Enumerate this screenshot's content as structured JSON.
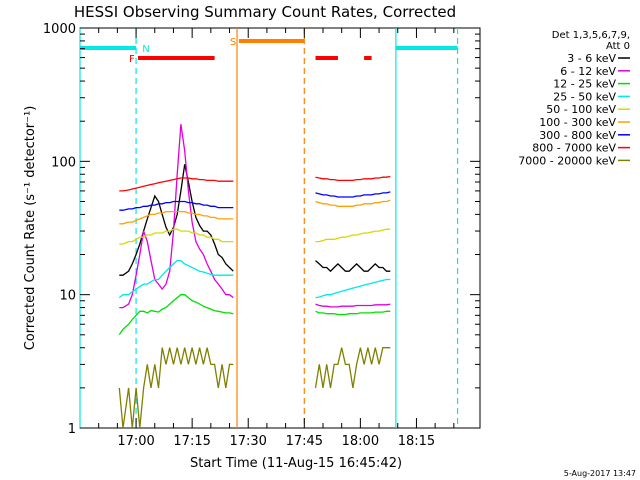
{
  "chart_data": {
    "type": "line",
    "title": "HESSI Observing Summary Count Rates, Corrected",
    "xlabel": "Start Time (11-Aug-15 16:45:42)",
    "ylabel": "Corrected Count Rate (s⁻¹ detector⁻¹)",
    "yscale": "log",
    "ylim": [
      1,
      1000
    ],
    "xlim_minutes_after_1645": [
      0,
      107
    ],
    "x_tick_labels": [
      "17:00",
      "17:15",
      "17:30",
      "17:45",
      "18:00",
      "18:15"
    ],
    "x_tick_minutes": [
      15,
      30,
      45,
      60,
      75,
      90
    ],
    "y_tick_labels": [
      "1",
      "10",
      "100",
      "1000"
    ],
    "legend": {
      "header": [
        "Det 1,3,5,6,7,9,",
        "Att 0"
      ],
      "position": "right"
    },
    "series": [
      {
        "name": "3 - 6 keV",
        "color": "#000000",
        "seg1": {
          "x": [
            10.5,
            11.5,
            13,
            14,
            15,
            16,
            17,
            18,
            19,
            20,
            21,
            22,
            23,
            24,
            25,
            26,
            27,
            28,
            29,
            30,
            31,
            32,
            33,
            34,
            35,
            36,
            37,
            38,
            39,
            40,
            41
          ],
          "y": [
            14,
            14,
            15,
            17,
            20,
            24,
            30,
            37,
            45,
            55,
            50,
            40,
            32,
            28,
            32,
            40,
            60,
            95,
            70,
            50,
            38,
            33,
            30,
            30,
            28,
            24,
            20,
            19,
            17,
            16,
            15
          ]
        },
        "seg2": {
          "x": [
            63,
            64,
            65,
            66,
            67,
            68,
            69,
            70,
            71,
            72,
            73,
            74,
            75,
            76,
            77,
            78,
            79,
            80,
            81,
            82,
            83
          ],
          "y": [
            18,
            17,
            16,
            16,
            15,
            16,
            17,
            16,
            15,
            15,
            16,
            17,
            16,
            15,
            15,
            16,
            17,
            16,
            16,
            15,
            15
          ]
        }
      },
      {
        "name": "6 - 12 keV",
        "color": "#e000e0",
        "seg1": {
          "x": [
            10.5,
            11.5,
            13,
            14,
            15,
            16,
            17,
            18,
            19,
            20,
            21,
            22,
            23,
            24,
            25,
            26,
            27,
            28,
            29,
            30,
            31,
            32,
            33,
            34,
            35,
            36,
            37,
            38,
            39,
            40,
            41
          ],
          "y": [
            8,
            8,
            8.5,
            10,
            14,
            20,
            30,
            25,
            18,
            13,
            12,
            11,
            12,
            15,
            30,
            80,
            190,
            120,
            60,
            35,
            25,
            22,
            20,
            17,
            15,
            13,
            12,
            11,
            10,
            10,
            9.5
          ]
        },
        "seg2": {
          "x": [
            63,
            64,
            65,
            66,
            67,
            68,
            69,
            70,
            71,
            72,
            73,
            74,
            75,
            76,
            77,
            78,
            79,
            80,
            81,
            82,
            83
          ],
          "y": [
            8.5,
            8.3,
            8.2,
            8.2,
            8.1,
            8.1,
            8.1,
            8.2,
            8.2,
            8.2,
            8.2,
            8.3,
            8.3,
            8.3,
            8.3,
            8.3,
            8.4,
            8.4,
            8.4,
            8.4,
            8.5
          ]
        }
      },
      {
        "name": "12 - 25 keV",
        "color": "#00e000",
        "seg1": {
          "x": [
            10.5,
            11.5,
            13,
            14,
            15,
            16,
            17,
            18,
            19,
            20,
            21,
            22,
            23,
            24,
            25,
            26,
            27,
            28,
            29,
            30,
            31,
            32,
            33,
            34,
            35,
            36,
            37,
            38,
            39,
            40,
            41
          ],
          "y": [
            5,
            5.5,
            6,
            6.5,
            7,
            7.5,
            7.5,
            7.3,
            7.6,
            7.5,
            7.4,
            7.8,
            8,
            8.5,
            9,
            9.5,
            10,
            10,
            9.5,
            9,
            8.8,
            8.5,
            8.2,
            8,
            7.8,
            7.6,
            7.5,
            7.4,
            7.3,
            7.3,
            7.2
          ]
        },
        "seg2": {
          "x": [
            63,
            64,
            65,
            66,
            67,
            68,
            69,
            70,
            71,
            72,
            73,
            74,
            75,
            76,
            77,
            78,
            79,
            80,
            81,
            82,
            83
          ],
          "y": [
            7.5,
            7.3,
            7.3,
            7.2,
            7.2,
            7.2,
            7.1,
            7.1,
            7.1,
            7.2,
            7.2,
            7.2,
            7.3,
            7.3,
            7.3,
            7.3,
            7.4,
            7.4,
            7.4,
            7.5,
            7.5
          ]
        }
      },
      {
        "name": "25 - 50 keV",
        "color": "#00e8e8",
        "seg1": {
          "x": [
            10.5,
            11.5,
            13,
            14,
            15,
            16,
            17,
            18,
            19,
            20,
            21,
            22,
            23,
            24,
            25,
            26,
            27,
            28,
            29,
            30,
            31,
            32,
            33,
            34,
            35,
            36,
            37,
            38,
            39,
            40,
            41
          ],
          "y": [
            9.5,
            10,
            10,
            10.5,
            11,
            11.5,
            12,
            12,
            12.5,
            13,
            13,
            14,
            15,
            16,
            17,
            18,
            18,
            17,
            16.5,
            16,
            15.5,
            15,
            14.8,
            14.5,
            14.2,
            14,
            14,
            14,
            14,
            14,
            14
          ]
        },
        "seg2": {
          "x": [
            63,
            64,
            65,
            66,
            67,
            68,
            69,
            70,
            71,
            72,
            73,
            74,
            75,
            76,
            77,
            78,
            79,
            80,
            81,
            82,
            83
          ],
          "y": [
            9.5,
            9.6,
            9.8,
            10,
            10,
            10.2,
            10.4,
            10.6,
            10.8,
            11,
            11.2,
            11.4,
            11.6,
            11.8,
            12,
            12.2,
            12.4,
            12.6,
            12.8,
            13,
            13
          ]
        }
      },
      {
        "name": "50 - 100 keV",
        "color": "#d8d800",
        "seg1": {
          "x": [
            10.5,
            11.5,
            13,
            14,
            15,
            16,
            17,
            18,
            19,
            20,
            21,
            22,
            23,
            24,
            25,
            26,
            27,
            28,
            29,
            30,
            31,
            32,
            33,
            34,
            35,
            36,
            37,
            38,
            39,
            40,
            41
          ],
          "y": [
            24,
            24,
            25,
            25,
            26,
            27,
            27,
            28,
            28,
            29,
            29,
            29,
            30,
            30,
            31,
            31,
            30,
            30,
            30,
            29,
            29,
            28,
            28,
            27,
            27,
            26,
            26,
            25,
            25,
            25,
            25
          ]
        },
        "seg2": {
          "x": [
            63,
            64,
            65,
            66,
            67,
            68,
            69,
            70,
            71,
            72,
            73,
            74,
            75,
            76,
            77,
            78,
            79,
            80,
            81,
            82,
            83
          ],
          "y": [
            25,
            25,
            25.5,
            26,
            26,
            26,
            26.5,
            27,
            27,
            27.5,
            28,
            28,
            28.5,
            29,
            29,
            29.5,
            30,
            30,
            30.5,
            31,
            31
          ]
        }
      },
      {
        "name": "100 - 300 keV",
        "color": "#ffa000",
        "seg1": {
          "x": [
            10.5,
            11.5,
            13,
            14,
            15,
            16,
            17,
            18,
            19,
            20,
            21,
            22,
            23,
            24,
            25,
            26,
            27,
            28,
            29,
            30,
            31,
            32,
            33,
            34,
            35,
            36,
            37,
            38,
            39,
            40,
            41
          ],
          "y": [
            34,
            34,
            35,
            35,
            36,
            37,
            38,
            39,
            40,
            40,
            41,
            41,
            42,
            42,
            42,
            42,
            42,
            42,
            41,
            41,
            40,
            40,
            39,
            39,
            38,
            38,
            37,
            37,
            37,
            37,
            37
          ]
        },
        "seg2": {
          "x": [
            63,
            64,
            65,
            66,
            67,
            68,
            69,
            70,
            71,
            72,
            73,
            74,
            75,
            76,
            77,
            78,
            79,
            80,
            81,
            82,
            83
          ],
          "y": [
            50,
            49,
            48,
            48,
            47,
            47,
            46,
            46,
            46,
            46,
            46,
            47,
            47,
            48,
            48,
            48,
            49,
            49,
            50,
            50,
            51
          ]
        }
      },
      {
        "name": "300 - 800 keV",
        "color": "#0000ff",
        "seg1": {
          "x": [
            10.5,
            11.5,
            13,
            14,
            15,
            16,
            17,
            18,
            19,
            20,
            21,
            22,
            23,
            24,
            25,
            26,
            27,
            28,
            29,
            30,
            31,
            32,
            33,
            34,
            35,
            36,
            37,
            38,
            39,
            40,
            41
          ],
          "y": [
            43,
            43,
            44,
            44,
            45,
            45,
            46,
            46,
            47,
            47,
            48,
            48,
            49,
            49,
            50,
            50,
            50,
            50,
            49,
            49,
            48,
            48,
            47,
            47,
            46,
            46,
            45,
            45,
            45,
            45,
            45
          ]
        },
        "seg2": {
          "x": [
            63,
            64,
            65,
            66,
            67,
            68,
            69,
            70,
            71,
            72,
            73,
            74,
            75,
            76,
            77,
            78,
            79,
            80,
            81,
            82,
            83
          ],
          "y": [
            58,
            57,
            56,
            56,
            55,
            55,
            54,
            54,
            54,
            54,
            54,
            55,
            55,
            56,
            56,
            56,
            57,
            57,
            58,
            58,
            59
          ]
        }
      },
      {
        "name": "800 - 7000 keV",
        "color": "#ff0000",
        "seg1": {
          "x": [
            10.5,
            11.5,
            13,
            14,
            15,
            16,
            17,
            18,
            19,
            20,
            21,
            22,
            23,
            24,
            25,
            26,
            27,
            28,
            29,
            30,
            31,
            32,
            33,
            34,
            35,
            36,
            37,
            38,
            39,
            40,
            41
          ],
          "y": [
            60,
            60,
            61,
            62,
            63,
            64,
            65,
            66,
            67,
            68,
            69,
            70,
            71,
            72,
            73,
            74,
            75,
            75,
            75,
            74,
            74,
            73,
            73,
            72,
            72,
            72,
            71,
            71,
            71,
            71,
            71
          ]
        },
        "seg2": {
          "x": [
            63,
            64,
            65,
            66,
            67,
            68,
            69,
            70,
            71,
            72,
            73,
            74,
            75,
            76,
            77,
            78,
            79,
            80,
            81,
            82,
            83
          ],
          "y": [
            76,
            75,
            74,
            74,
            73,
            73,
            72,
            72,
            72,
            72,
            72,
            73,
            73,
            74,
            74,
            74,
            75,
            75,
            76,
            76,
            77
          ]
        }
      },
      {
        "name": "7000 - 20000 keV",
        "color": "#808000",
        "seg1": {
          "x": [
            10.5,
            11.5,
            13,
            14,
            15,
            16,
            17,
            18,
            19,
            20,
            21,
            22,
            23,
            24,
            25,
            26,
            27,
            28,
            29,
            30,
            31,
            32,
            33,
            34,
            35,
            36,
            37,
            38,
            39,
            40,
            41
          ],
          "y": [
            2,
            1,
            2,
            1,
            2,
            1,
            2,
            3,
            2,
            3,
            2,
            4,
            3,
            4,
            3,
            4,
            3,
            4,
            3,
            4,
            3,
            4,
            3,
            4,
            3,
            3,
            2,
            3,
            2,
            3,
            3
          ]
        },
        "seg2": {
          "x": [
            63,
            64,
            65,
            66,
            67,
            68,
            69,
            70,
            71,
            72,
            73,
            74,
            75,
            76,
            77,
            78,
            79,
            80,
            81,
            82,
            83
          ],
          "y": [
            2,
            3,
            2,
            3,
            2,
            3,
            3,
            4,
            3,
            3,
            2,
            3,
            4,
            3,
            4,
            3,
            4,
            3,
            4,
            4,
            4
          ]
        }
      }
    ],
    "status_bars": [
      {
        "label": "",
        "color": "#00e8e8",
        "row": 0,
        "x": [
          0,
          15
        ]
      },
      {
        "label": "N",
        "color": "#00e8e8",
        "row": 0,
        "x": [
          15.3,
          15.3
        ]
      },
      {
        "label": "F",
        "color": "#ff0000",
        "row": 1,
        "x": [
          15.5,
          36
        ]
      },
      {
        "label": "S",
        "color": "#ff8000",
        "row": -1,
        "x": [
          42.5,
          60
        ]
      },
      {
        "label": "",
        "color": "#ff0000",
        "row": 1,
        "x": [
          63,
          69
        ]
      },
      {
        "label": "",
        "color": "#ff0000",
        "row": 1,
        "x": [
          76,
          78
        ]
      },
      {
        "label": "",
        "color": "#00e8e8",
        "row": 0,
        "x": [
          84.5,
          101
        ]
      }
    ],
    "vertical_markers": [
      {
        "x": 0,
        "color": "#00e8e8",
        "style": "solid"
      },
      {
        "x": 15,
        "color": "#00e8e8",
        "style": "dashed"
      },
      {
        "x": 42,
        "color": "#ff8000",
        "style": "solid"
      },
      {
        "x": 60,
        "color": "#ff8000",
        "style": "dashed"
      },
      {
        "x": 84.5,
        "color": "#00e8e8",
        "style": "solid"
      },
      {
        "x": 101,
        "color": "#00e8e8",
        "style": "dashed"
      }
    ],
    "footer_stamp": "5-Aug-2017 13:47"
  }
}
